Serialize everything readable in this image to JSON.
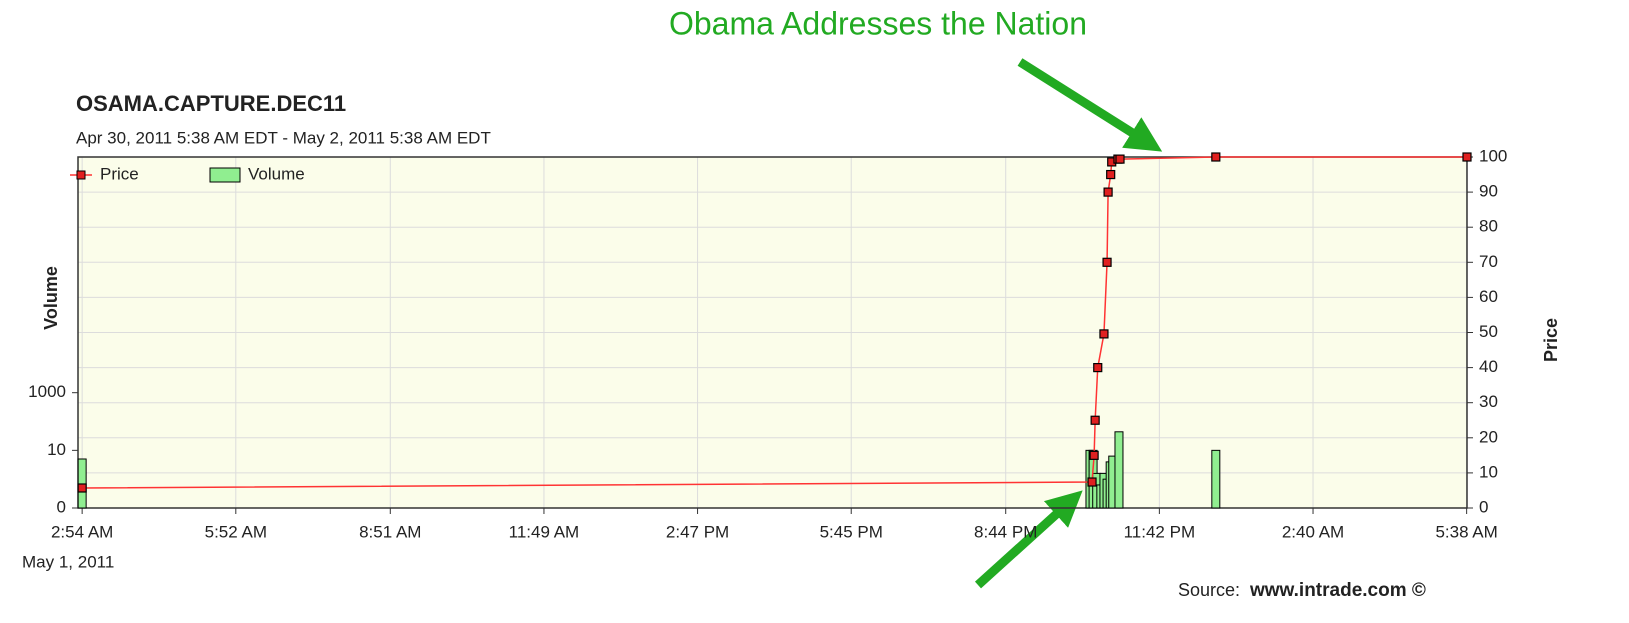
{
  "chart_data": {
    "type": "price-volume",
    "title": "OSAMA.CAPTURE.DEC11",
    "subtitle": "Apr 30, 2011 5:38 AM EDT - May 2, 2011 5:38 AM EDT",
    "annotation": "Obama Addresses the Nation",
    "source_label": "Source:",
    "source_site": "www.intrade.com ©",
    "x_date_label": "May 1, 2011",
    "y_label": "Volume",
    "y2_label": "Price",
    "xlim": [
      2.82,
      29.64
    ],
    "xticks": [
      {
        "value": 2.9,
        "label": "2:54 AM"
      },
      {
        "value": 5.867,
        "label": "5:52 AM"
      },
      {
        "value": 8.85,
        "label": "8:51 AM"
      },
      {
        "value": 11.817,
        "label": "11:49 AM"
      },
      {
        "value": 14.783,
        "label": "2:47 PM"
      },
      {
        "value": 17.75,
        "label": "5:45 PM"
      },
      {
        "value": 20.733,
        "label": "8:44 PM"
      },
      {
        "value": 23.7,
        "label": "11:42 PM"
      },
      {
        "value": 26.667,
        "label": "2:40 AM"
      },
      {
        "value": 29.633,
        "label": "5:38 AM"
      }
    ],
    "ylim": [
      0,
      150000000000
    ],
    "yticks": [
      0,
      10,
      1000
    ],
    "y_symlog": true,
    "y2lim": [
      0,
      100
    ],
    "y2ticks": [
      0,
      10,
      20,
      30,
      40,
      50,
      60,
      70,
      80,
      90,
      100
    ],
    "grid": true,
    "legend": "upper left",
    "series": [
      {
        "name": "Price",
        "kind": "line",
        "axis": "y2",
        "color": "#ff3333",
        "x": [
          2.9,
          22.4,
          22.44,
          22.46,
          22.51,
          22.63,
          22.69,
          22.71,
          22.76,
          22.78,
          22.9,
          22.94,
          24.79,
          29.64
        ],
        "values": [
          5.7,
          7.4,
          15,
          25,
          40,
          49.6,
          70,
          90,
          95,
          98.6,
          99.4,
          99.4,
          100,
          100
        ]
      },
      {
        "name": "Volume",
        "kind": "bar",
        "axis": "y",
        "color": "#90ee90",
        "x": [
          2.9,
          22.36,
          22.42,
          22.49,
          22.57,
          22.63,
          22.69,
          22.75,
          22.8,
          22.92,
          24.79
        ],
        "values": [
          8.5,
          10,
          10,
          6,
          4,
          6,
          5,
          8,
          9,
          44,
          10
        ]
      }
    ]
  }
}
